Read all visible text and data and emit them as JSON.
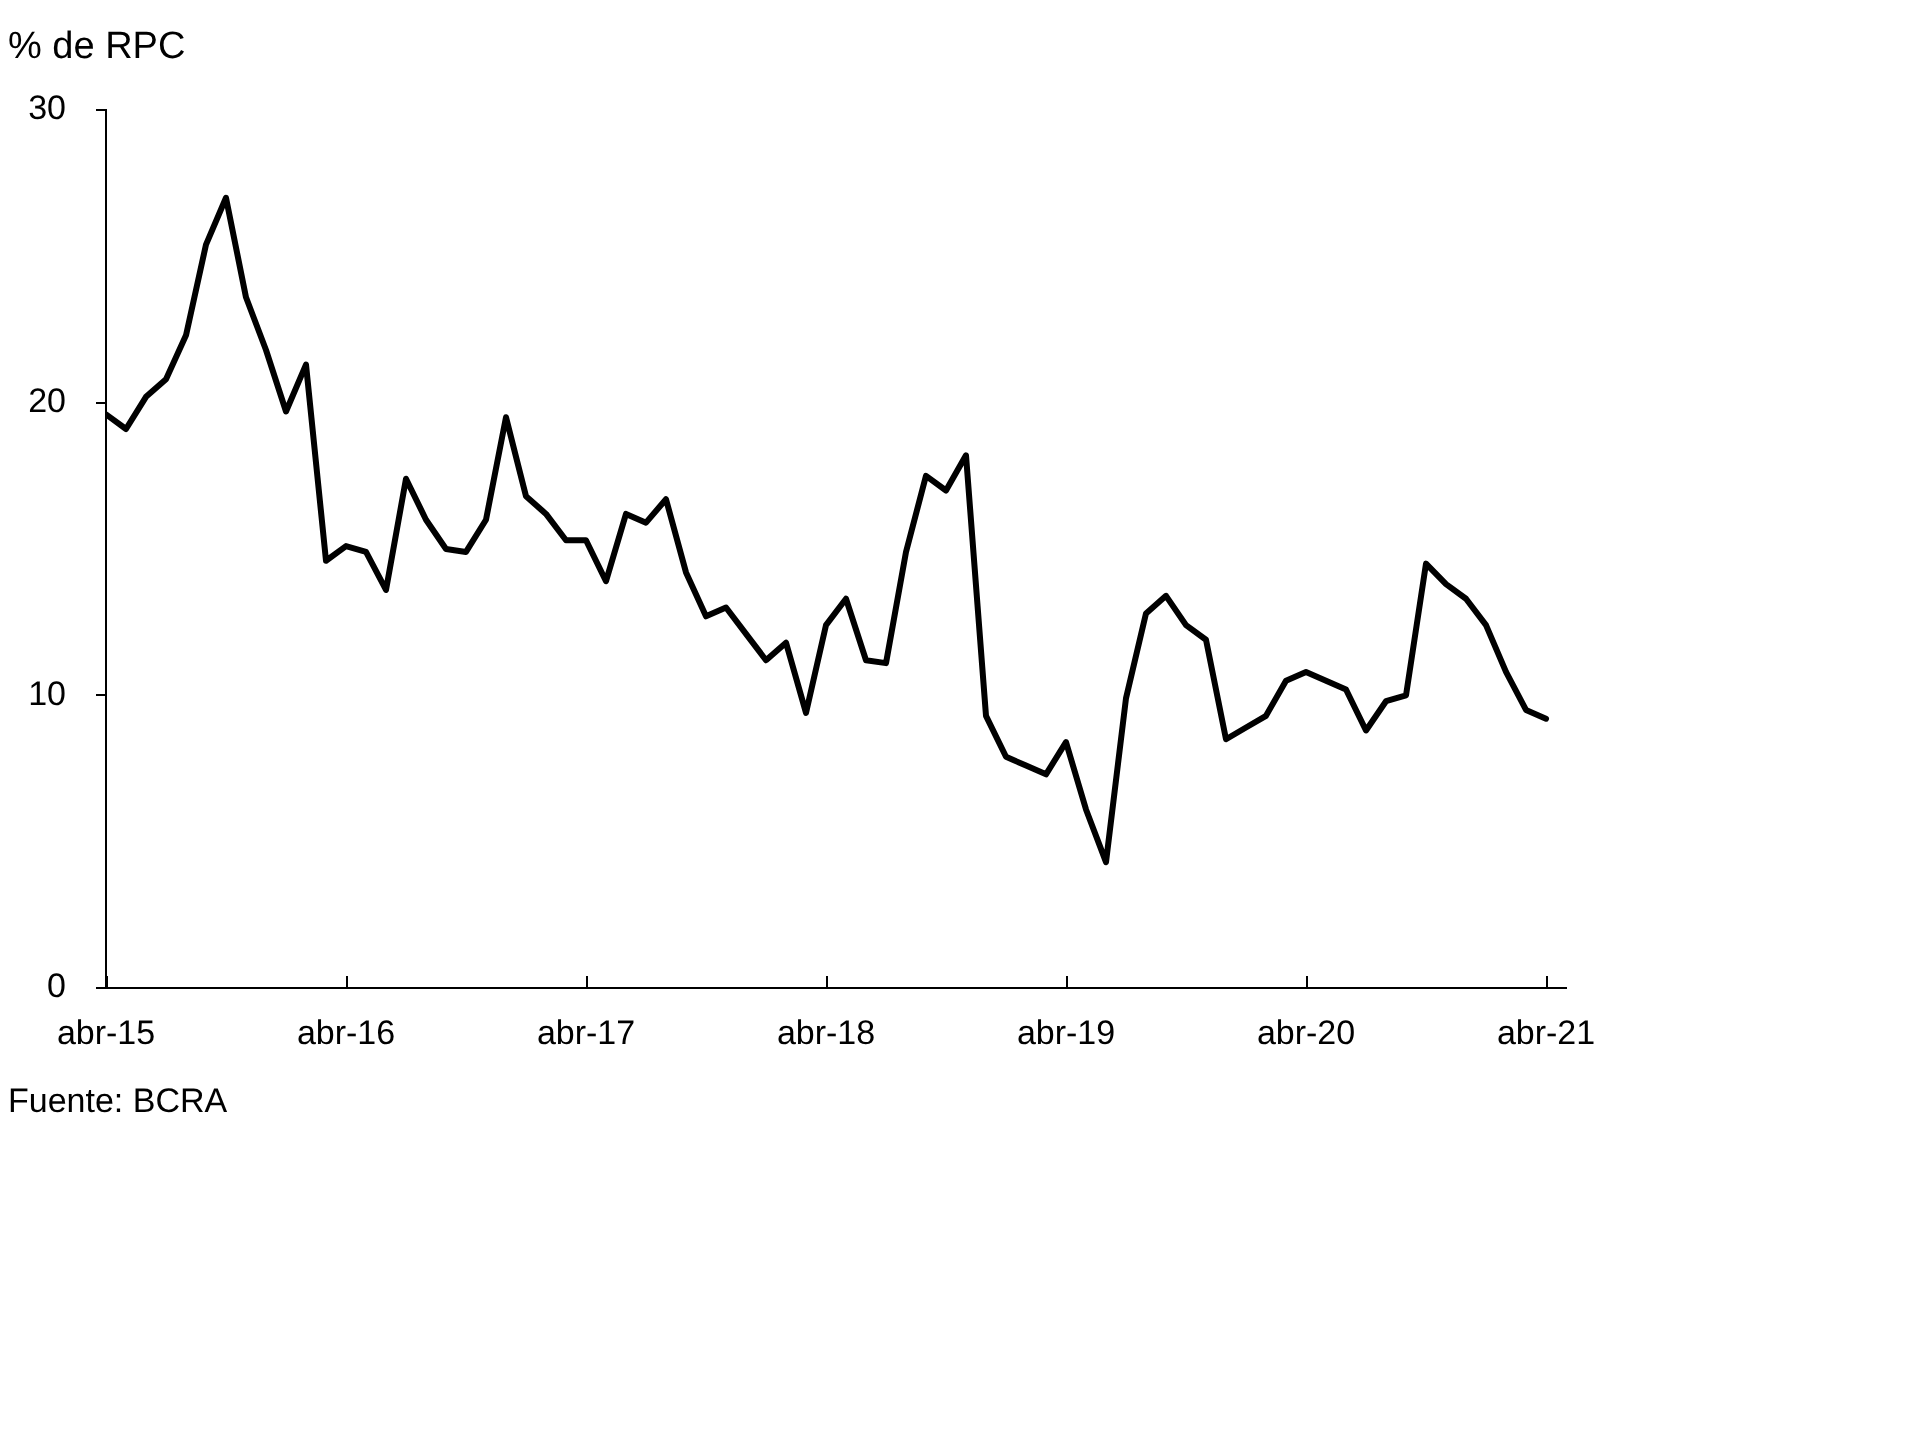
{
  "chart_data": {
    "type": "line",
    "ylabel": "% de RPC",
    "annotations": [
      "Fuente: BCRA"
    ],
    "x": [
      "2015-04",
      "2015-05",
      "2015-06",
      "2015-07",
      "2015-08",
      "2015-09",
      "2015-10",
      "2015-11",
      "2015-12",
      "2016-01",
      "2016-02",
      "2016-03",
      "2016-04",
      "2016-05",
      "2016-06",
      "2016-07",
      "2016-08",
      "2016-09",
      "2016-10",
      "2016-11",
      "2016-12",
      "2017-01",
      "2017-02",
      "2017-03",
      "2017-04",
      "2017-05",
      "2017-06",
      "2017-07",
      "2017-08",
      "2017-09",
      "2017-10",
      "2017-11",
      "2017-12",
      "2018-01",
      "2018-02",
      "2018-03",
      "2018-04",
      "2018-05",
      "2018-06",
      "2018-07",
      "2018-08",
      "2018-09",
      "2018-10",
      "2018-11",
      "2018-12",
      "2019-01",
      "2019-02",
      "2019-03",
      "2019-04",
      "2019-05",
      "2019-06",
      "2019-07",
      "2019-08",
      "2019-09",
      "2019-10",
      "2019-11",
      "2019-12",
      "2020-01",
      "2020-02",
      "2020-03",
      "2020-04",
      "2020-05",
      "2020-06",
      "2020-07",
      "2020-08",
      "2020-09",
      "2020-10",
      "2020-11",
      "2020-12",
      "2021-01",
      "2021-02",
      "2021-03",
      "2021-04"
    ],
    "series": [
      {
        "color": "#000000",
        "values": [
          19.6,
          19.1,
          20.2,
          20.8,
          22.3,
          25.4,
          27.0,
          23.6,
          21.8,
          19.7,
          21.3,
          14.6,
          15.1,
          14.9,
          13.6,
          17.4,
          16.0,
          15.0,
          14.9,
          16.0,
          19.5,
          16.8,
          16.2,
          15.3,
          15.3,
          13.9,
          16.2,
          15.9,
          16.7,
          14.2,
          12.7,
          13.0,
          12.1,
          11.2,
          11.8,
          9.4,
          12.4,
          13.3,
          11.2,
          11.1,
          14.9,
          17.5,
          17.0,
          18.2,
          9.3,
          7.9,
          7.6,
          7.3,
          8.4,
          6.1,
          4.3,
          9.9,
          12.8,
          13.4,
          12.4,
          11.9,
          8.5,
          8.9,
          9.3,
          10.5,
          10.8,
          10.5,
          10.2,
          8.8,
          9.8,
          10.0,
          14.5,
          13.8,
          13.3,
          12.4,
          10.8,
          9.5,
          9.2
        ]
      }
    ],
    "xlim": [
      "2015-04",
      "2021-05"
    ],
    "xticks": [
      {
        "value": "2015-04",
        "label": "abr-15"
      },
      {
        "value": "2016-04",
        "label": "abr-16"
      },
      {
        "value": "2017-04",
        "label": "abr-17"
      },
      {
        "value": "2018-04",
        "label": "abr-18"
      },
      {
        "value": "2019-04",
        "label": "abr-19"
      },
      {
        "value": "2020-04",
        "label": "abr-20"
      },
      {
        "value": "2021-04",
        "label": "abr-21"
      }
    ],
    "ylim": [
      0,
      30
    ],
    "yticks": [
      0,
      10,
      20,
      30
    ],
    "grid": false,
    "legend": false,
    "marker": "none",
    "line_style": "solid"
  }
}
